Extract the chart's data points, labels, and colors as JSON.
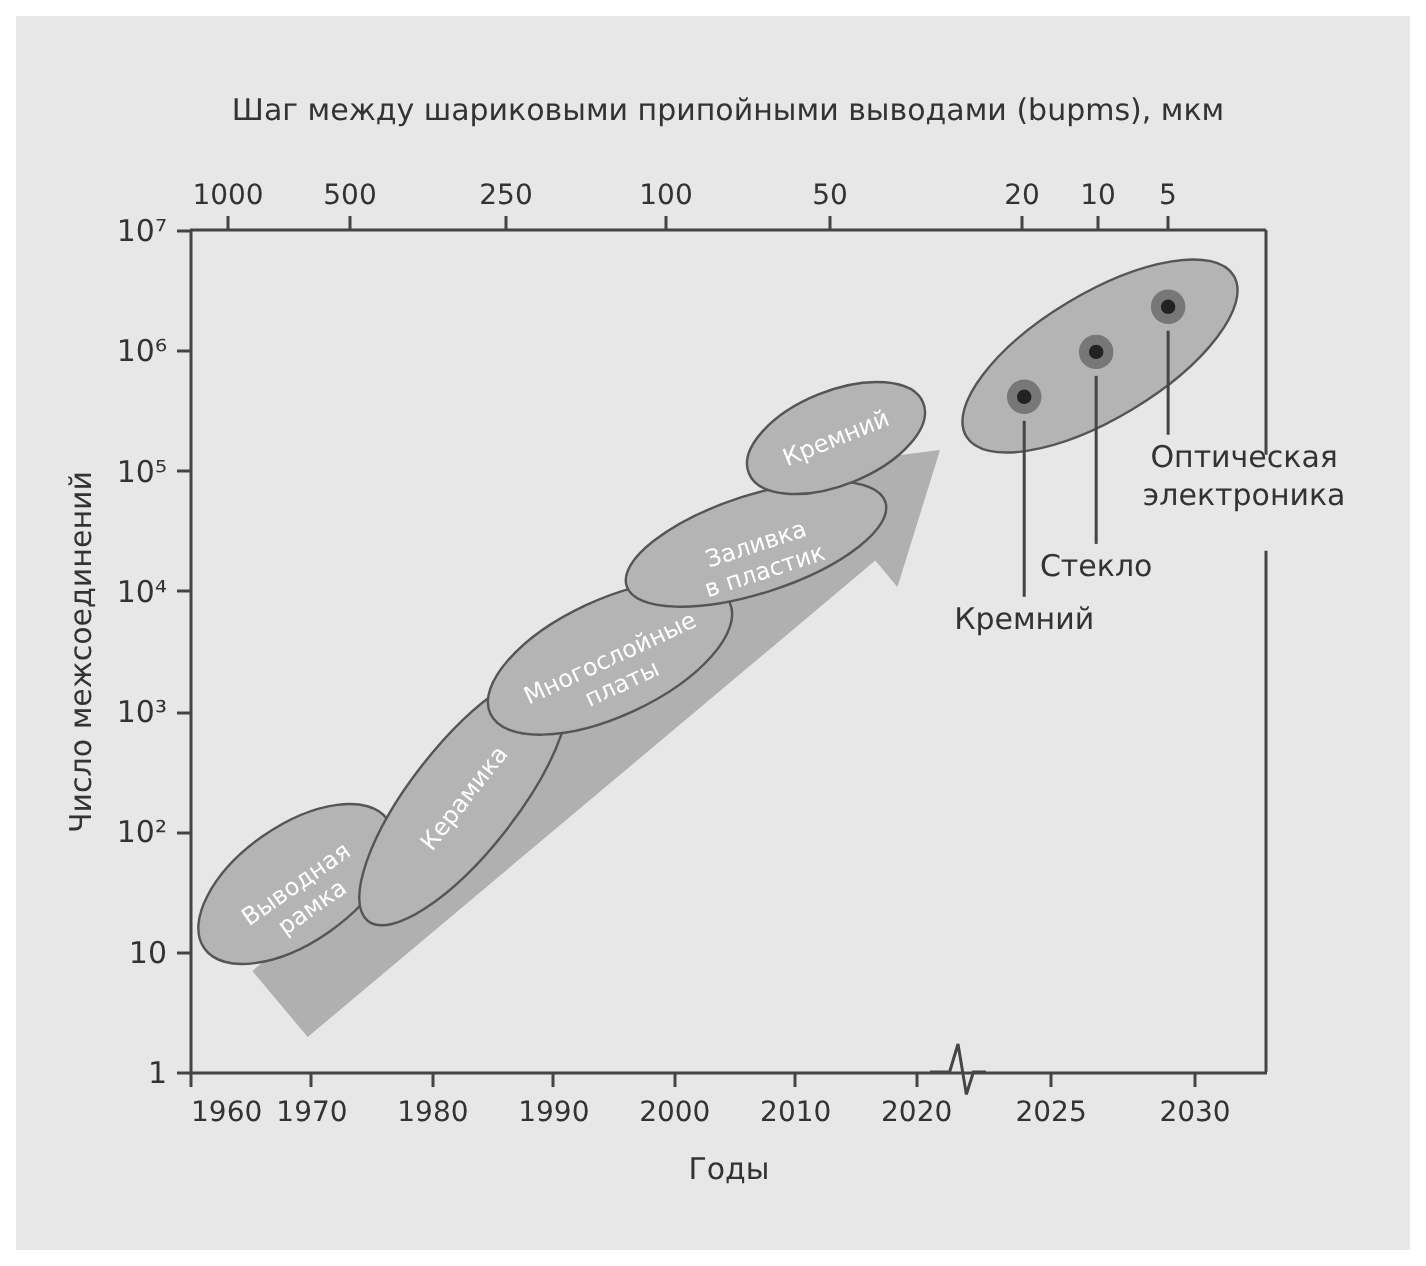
{
  "chart_data": [
    {
      "type": "scatter",
      "title": "Шаг между шариковыми припойными выводами (bupms), мкм",
      "xlabel": "Годы",
      "ylabel": "Число межсоединений",
      "xlim": [
        1960,
        2023.5
      ],
      "xticks": [
        1960,
        1970,
        1980,
        1990,
        2000,
        2010,
        2020
      ],
      "ylim": [
        1,
        10000000
      ],
      "yticks": [
        1,
        10,
        {
          "value": 100,
          "label": "10²"
        },
        {
          "value": 1000,
          "label": "10³"
        },
        {
          "value": 10000,
          "label": "10⁴"
        },
        {
          "value": 100000,
          "label": "10⁵"
        },
        {
          "value": 1000000,
          "label": "10⁶"
        },
        {
          "value": 10000000,
          "label": "10⁷"
        }
      ],
      "log": true,
      "annotations": [
        "Выводная рамка",
        "Керамика",
        "Многослойные платы",
        "Заливка в пластик",
        "Кремний",
        "1000",
        "500",
        "250",
        "100",
        "50"
      ]
    },
    {
      "type": "scatter",
      "xlim": [
        2021.8,
        2032.5
      ],
      "xticks": [
        2025,
        2030
      ],
      "ylim": [
        1,
        10000000
      ],
      "yticks": [
        1,
        10,
        100,
        1000,
        10000,
        100000,
        1000000,
        10000000
      ],
      "log": true,
      "tick_labels": "x",
      "marker": "circle",
      "series": [
        {
          "name": "Кремний",
          "color": "#222222",
          "x": [
            2024.1
          ],
          "values": [
            410000
          ]
        },
        {
          "name": "Стекло",
          "color": "#222222",
          "x": [
            2026.6
          ],
          "values": [
            970000
          ]
        },
        {
          "name": "Оптическая электроника",
          "color": "#222222",
          "x": [
            2029.1
          ],
          "values": [
            2300000
          ]
        }
      ],
      "annotations": [
        "20",
        "10",
        "5"
      ]
    }
  ]
}
